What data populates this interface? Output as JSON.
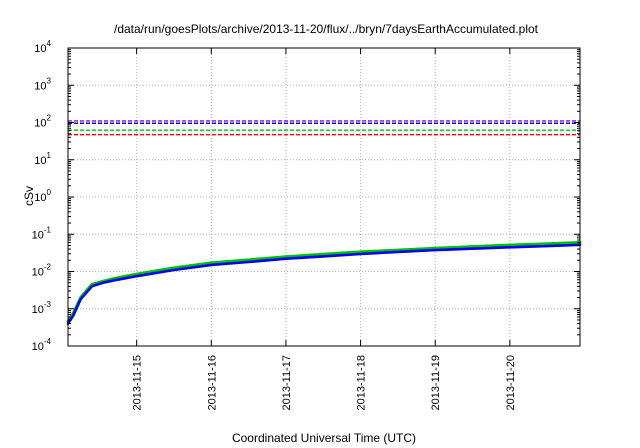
{
  "chart_data": {
    "type": "line",
    "title": "/data/run/goesPlots/archive/2013-11-20/flux/../bryn/7daysEarthAccumulated.plot",
    "xlabel": "Coordinated Universal Time (UTC)",
    "ylabel": "cSv",
    "y_scale": "log",
    "ylim": [
      0.0001,
      10000
    ],
    "xlim": [
      14.08,
      20.94
    ],
    "x_ticks": [
      {
        "value": 15,
        "label": "2013-11-15"
      },
      {
        "value": 16,
        "label": "2013-11-16"
      },
      {
        "value": 17,
        "label": "2013-11-17"
      },
      {
        "value": 18,
        "label": "2013-11-18"
      },
      {
        "value": 19,
        "label": "2013-11-19"
      },
      {
        "value": 20,
        "label": "2013-11-20"
      }
    ],
    "y_ticks": [
      {
        "value": 0.0001,
        "base": "10",
        "exp": "-4"
      },
      {
        "value": 0.001,
        "base": "10",
        "exp": "-3"
      },
      {
        "value": 0.01,
        "base": "10",
        "exp": "-2"
      },
      {
        "value": 0.1,
        "base": "10",
        "exp": "-1"
      },
      {
        "value": 1,
        "base": "10",
        "exp": "0"
      },
      {
        "value": 10,
        "base": "10",
        "exp": "1"
      },
      {
        "value": 100,
        "base": "10",
        "exp": "2"
      },
      {
        "value": 1000,
        "base": "10",
        "exp": "3"
      },
      {
        "value": 10000,
        "base": "10",
        "exp": "4"
      }
    ],
    "grid": true,
    "reference_lines": [
      {
        "y": 110,
        "color": "#9400d3",
        "style": "dashed"
      },
      {
        "y": 95,
        "color": "#0000ff",
        "style": "dashed"
      },
      {
        "y": 62,
        "color": "#00c000",
        "style": "dashed"
      },
      {
        "y": 47,
        "color": "#ff0000",
        "style": "dashed"
      }
    ],
    "series": [
      {
        "color": "#00c000",
        "x": [
          14.08,
          14.15,
          14.25,
          14.4,
          14.55,
          14.7,
          15.0,
          15.5,
          16.0,
          16.5,
          17.0,
          17.5,
          18.0,
          18.5,
          19.0,
          19.5,
          20.0,
          20.5,
          20.94
        ],
        "y": [
          0.00045,
          0.00075,
          0.002,
          0.0045,
          0.0055,
          0.0065,
          0.0085,
          0.0125,
          0.017,
          0.0205,
          0.025,
          0.029,
          0.0335,
          0.0375,
          0.042,
          0.0465,
          0.051,
          0.0555,
          0.06
        ]
      },
      {
        "color": "#0000ff",
        "x": [
          14.08,
          14.15,
          14.25,
          14.4,
          14.55,
          14.7,
          15.0,
          15.5,
          16.0,
          16.5,
          17.0,
          17.5,
          18.0,
          18.5,
          19.0,
          19.5,
          20.0,
          20.5,
          20.94
        ],
        "y": [
          0.0004,
          0.00065,
          0.0018,
          0.004,
          0.005,
          0.0058,
          0.0075,
          0.011,
          0.015,
          0.018,
          0.022,
          0.0255,
          0.0295,
          0.0335,
          0.0375,
          0.041,
          0.0445,
          0.048,
          0.052
        ]
      }
    ]
  }
}
